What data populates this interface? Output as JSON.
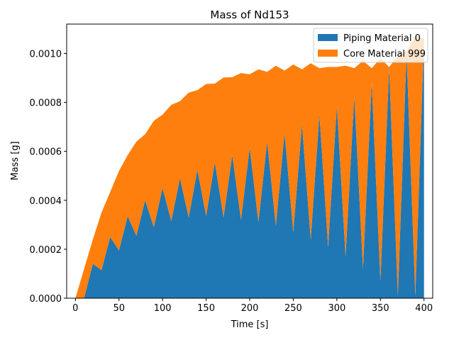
{
  "chart_data": {
    "type": "area",
    "stacked": true,
    "title": "Mass of Nd153",
    "xlabel": "Time [s]",
    "ylabel": "Mass [g]",
    "xlim": [
      -10,
      410
    ],
    "ylim": [
      0,
      0.00112
    ],
    "xticks": [
      0,
      50,
      100,
      150,
      200,
      250,
      300,
      350,
      400
    ],
    "xtick_labels": [
      "0",
      "50",
      "100",
      "150",
      "200",
      "250",
      "300",
      "350",
      "400"
    ],
    "yticks": [
      0,
      0.0002,
      0.0004,
      0.0006,
      0.0008,
      0.001
    ],
    "ytick_labels": [
      "0.0000",
      "0.0002",
      "0.0004",
      "0.0006",
      "0.0008",
      "0.0010"
    ],
    "grid": false,
    "legend_position": "top-right",
    "x": [
      0,
      10,
      20,
      30,
      40,
      50,
      60,
      70,
      80,
      90,
      100,
      110,
      120,
      130,
      140,
      150,
      160,
      170,
      180,
      190,
      200,
      210,
      220,
      230,
      240,
      250,
      260,
      270,
      280,
      290,
      300,
      310,
      320,
      330,
      340,
      350,
      360,
      370,
      380,
      390,
      400
    ],
    "series": [
      {
        "name": "Piping Material 0",
        "color": "#1f77b4",
        "values": [
          0,
          0,
          0.00014,
          0.000115,
          0.00025,
          0.000195,
          0.000335,
          0.000255,
          0.0004,
          0.00029,
          0.00045,
          0.000315,
          0.00049,
          0.00033,
          0.000525,
          0.000335,
          0.000555,
          0.00033,
          0.000585,
          0.00032,
          0.000615,
          0.00031,
          0.00064,
          0.000295,
          0.000675,
          0.00027,
          0.00071,
          0.00024,
          0.00075,
          0.00021,
          0.000785,
          0.00017,
          0.000825,
          0.00012,
          0.00088,
          7e-05,
          0.00094,
          1e-05,
          0.001,
          1e-05,
          0.00106
        ]
      },
      {
        "name": "Core Material 999",
        "color": "#ff7f0e",
        "values": [
          0,
          0.00012,
          0.0001,
          0.000235,
          0.000185,
          0.000325,
          0.00025,
          0.000385,
          0.00027,
          0.000435,
          0.0003,
          0.000475,
          0.000315,
          0.00051,
          0.000325,
          0.00054,
          0.000322,
          0.000572,
          0.000318,
          0.0006,
          0.0003,
          0.000625,
          0.000285,
          0.000655,
          0.000255,
          0.000685,
          0.000225,
          0.00072,
          0.00019,
          0.000735,
          0.00016,
          0.00078,
          0.000115,
          0.00085,
          6e-05,
          0.00091,
          5e-06,
          0.00098,
          1e-05,
          0.00106,
          0
        ]
      }
    ]
  }
}
